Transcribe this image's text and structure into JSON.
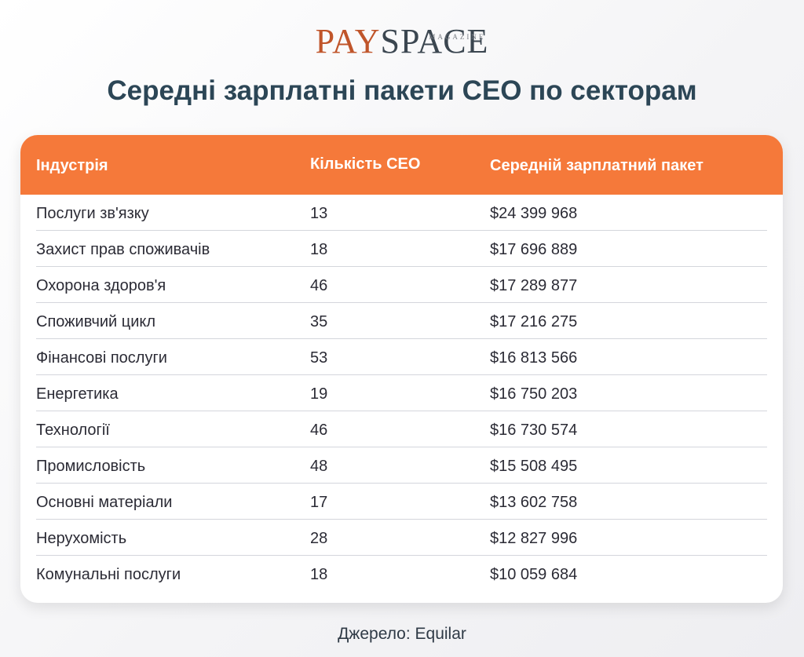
{
  "brand": {
    "pay": "PAY",
    "space": "SPACE",
    "magazine": "MAGAZINE"
  },
  "title": "Середні зарплатні пакети CEO по секторам",
  "source": "Джерело: Equilar",
  "colors": {
    "header": "#f5793a",
    "title": "#2c4656",
    "brand_pay": "#c0552a",
    "brand_space": "#3b4650"
  },
  "chart_data": {
    "type": "table",
    "columns": [
      "Індустрія",
      "Кількість CEO",
      "Середній зарплатний пакет"
    ],
    "rows": [
      [
        "Послуги зв'язку",
        "13",
        "$24 399 968"
      ],
      [
        "Захист прав споживачів",
        "18",
        "$17 696 889"
      ],
      [
        "Охорона здоров'я",
        "46",
        "$17 289 877"
      ],
      [
        "Споживчий цикл",
        "35",
        "$17 216 275"
      ],
      [
        "Фінансові послуги",
        "53",
        "$16 813 566"
      ],
      [
        "Енергетика",
        "19",
        "$16 750 203"
      ],
      [
        "Технології",
        "46",
        "$16 730 574"
      ],
      [
        "Промисловість",
        "48",
        "$15 508 495"
      ],
      [
        "Основні матеріали",
        "17",
        "$13 602 758"
      ],
      [
        "Нерухомість",
        "28",
        "$12 827 996"
      ],
      [
        "Комунальні послуги",
        "18",
        "$10 059 684"
      ]
    ]
  }
}
